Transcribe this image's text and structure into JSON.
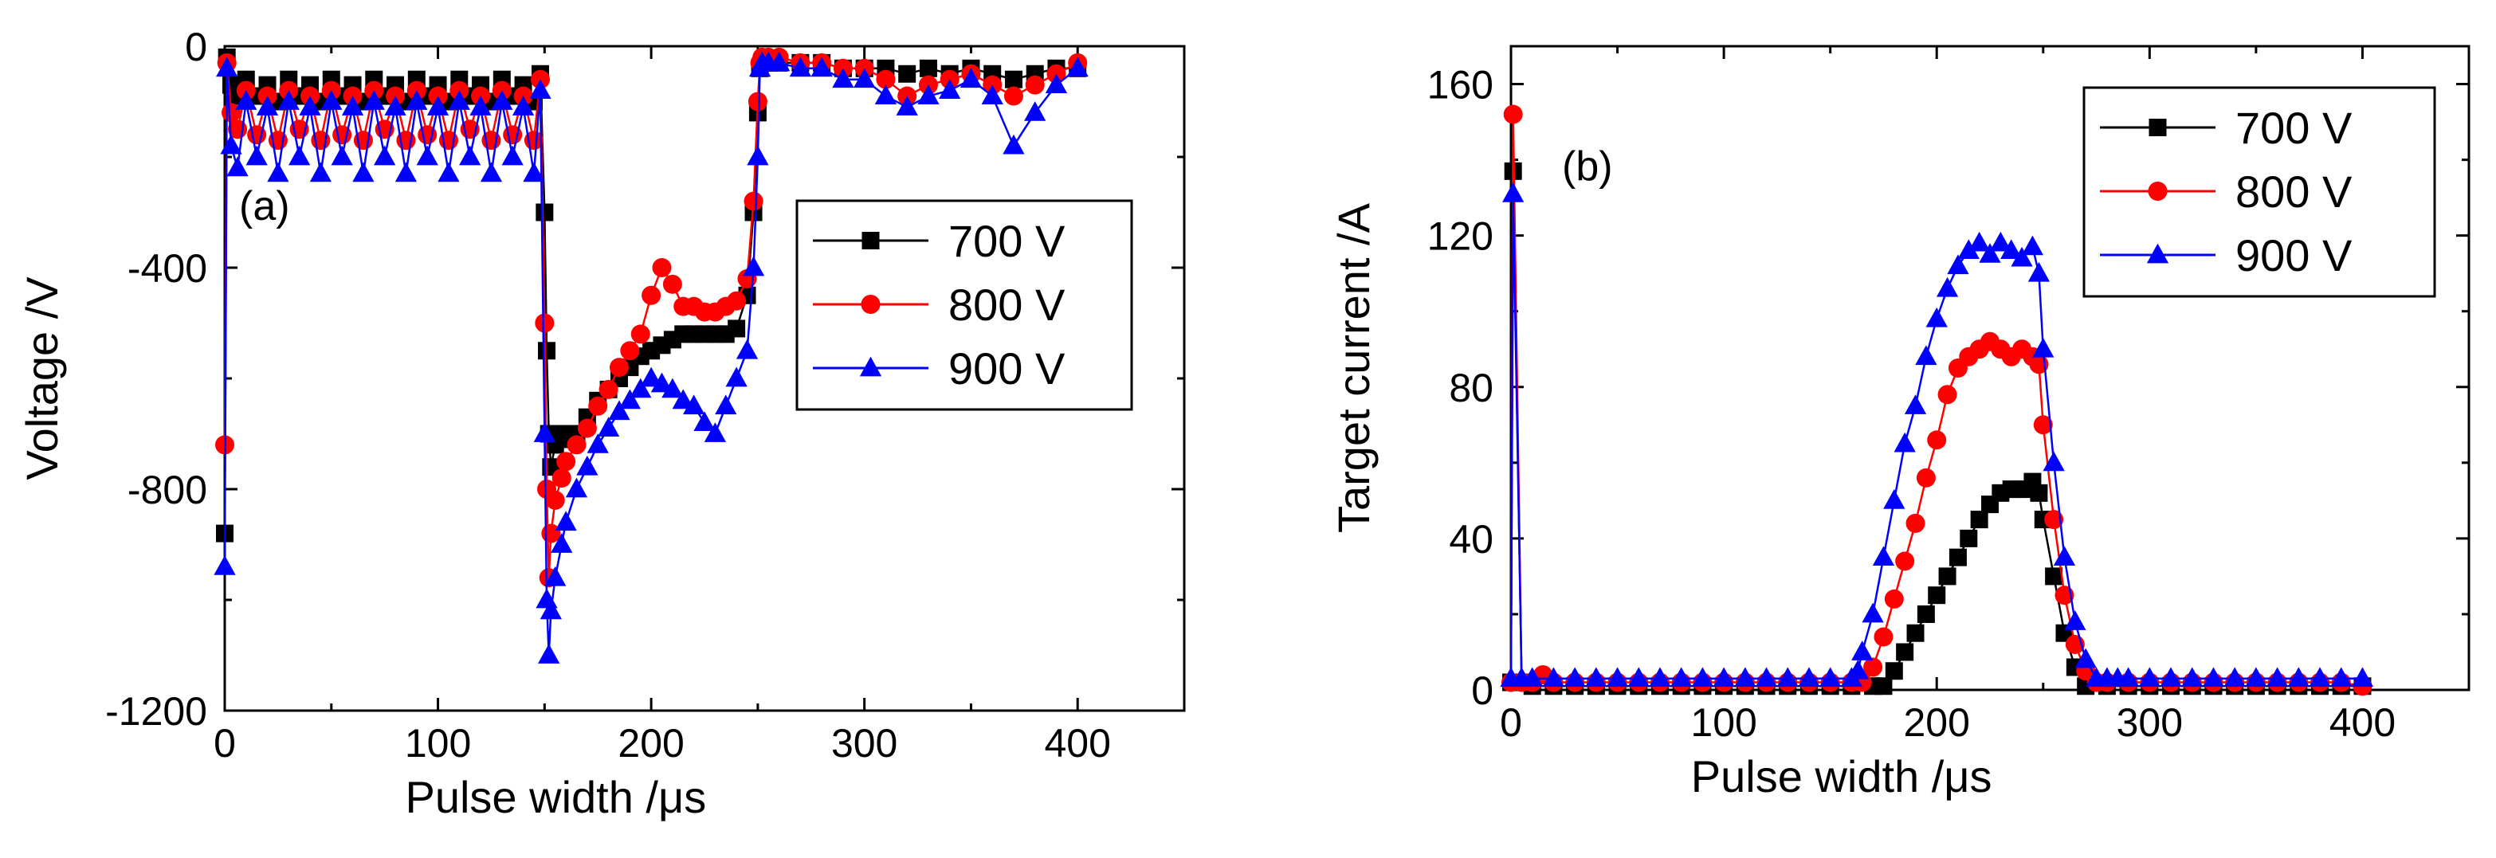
{
  "chart_data": [
    {
      "type": "scatter",
      "panel_label": "(a)",
      "xlabel": "Pulse width /μs",
      "ylabel": "Voltage /V",
      "xlim": [
        0,
        450
      ],
      "ylim": [
        -1200,
        0
      ],
      "xticks": [
        0,
        100,
        200,
        300,
        400
      ],
      "yticks": [
        0,
        -400,
        -800,
        -1200
      ],
      "legend_position": "right-middle",
      "series": [
        {
          "name": "700 V",
          "color": "#000000",
          "marker": "square",
          "x": [
            0,
            1,
            3,
            6,
            10,
            15,
            20,
            25,
            30,
            35,
            40,
            45,
            50,
            55,
            60,
            65,
            70,
            75,
            80,
            85,
            90,
            95,
            100,
            105,
            110,
            115,
            120,
            125,
            130,
            135,
            140,
            145,
            148,
            150,
            151,
            152,
            153,
            155,
            158,
            160,
            165,
            170,
            175,
            180,
            185,
            190,
            195,
            200,
            205,
            210,
            215,
            220,
            225,
            230,
            235,
            240,
            245,
            248,
            250,
            251,
            252,
            255,
            260,
            270,
            280,
            290,
            300,
            310,
            320,
            330,
            340,
            350,
            360,
            370,
            380,
            390,
            400
          ],
          "y": [
            -880,
            -20,
            -70,
            -90,
            -60,
            -90,
            -70,
            -100,
            -60,
            -90,
            -70,
            -100,
            -60,
            -90,
            -70,
            -100,
            -60,
            -90,
            -70,
            -100,
            -60,
            -90,
            -70,
            -100,
            -60,
            -90,
            -70,
            -100,
            -60,
            -90,
            -70,
            -100,
            -50,
            -300,
            -550,
            -700,
            -760,
            -720,
            -700,
            -710,
            -700,
            -670,
            -640,
            -620,
            -600,
            -580,
            -560,
            -550,
            -540,
            -530,
            -520,
            -520,
            -520,
            -520,
            -520,
            -510,
            -450,
            -300,
            -120,
            -40,
            -30,
            -30,
            -30,
            -30,
            -30,
            -40,
            -40,
            -40,
            -50,
            -40,
            -50,
            -40,
            -50,
            -60,
            -50,
            -40,
            -40
          ]
        },
        {
          "name": "800 V",
          "color": "#ff0000",
          "marker": "circle",
          "x": [
            0,
            1,
            3,
            6,
            10,
            15,
            20,
            25,
            30,
            35,
            40,
            45,
            50,
            55,
            60,
            65,
            70,
            75,
            80,
            85,
            90,
            95,
            100,
            105,
            110,
            115,
            120,
            125,
            130,
            135,
            140,
            145,
            148,
            150,
            151,
            152,
            153,
            155,
            158,
            160,
            165,
            170,
            175,
            180,
            185,
            190,
            195,
            200,
            205,
            210,
            215,
            220,
            225,
            230,
            235,
            240,
            245,
            248,
            250,
            251,
            252,
            255,
            260,
            270,
            280,
            290,
            300,
            310,
            320,
            330,
            340,
            350,
            360,
            370,
            380,
            390,
            400
          ],
          "y": [
            -720,
            -30,
            -120,
            -150,
            -80,
            -160,
            -90,
            -170,
            -80,
            -150,
            -90,
            -170,
            -80,
            -160,
            -90,
            -170,
            -80,
            -150,
            -90,
            -170,
            -80,
            -160,
            -90,
            -170,
            -80,
            -150,
            -90,
            -170,
            -80,
            -160,
            -90,
            -170,
            -60,
            -500,
            -800,
            -960,
            -880,
            -820,
            -780,
            -750,
            -720,
            -690,
            -650,
            -620,
            -580,
            -550,
            -520,
            -450,
            -400,
            -430,
            -470,
            -470,
            -480,
            -480,
            -470,
            -460,
            -420,
            -280,
            -100,
            -30,
            -20,
            -20,
            -20,
            -30,
            -30,
            -40,
            -40,
            -60,
            -90,
            -70,
            -60,
            -50,
            -70,
            -90,
            -70,
            -50,
            -30
          ]
        },
        {
          "name": "900 V",
          "color": "#0000ff",
          "marker": "triangle",
          "x": [
            0,
            1,
            3,
            6,
            10,
            15,
            20,
            25,
            30,
            35,
            40,
            45,
            50,
            55,
            60,
            65,
            70,
            75,
            80,
            85,
            90,
            95,
            100,
            105,
            110,
            115,
            120,
            125,
            130,
            135,
            140,
            145,
            148,
            150,
            151,
            152,
            153,
            155,
            158,
            160,
            165,
            170,
            175,
            180,
            185,
            190,
            195,
            200,
            205,
            210,
            215,
            220,
            225,
            230,
            235,
            240,
            245,
            248,
            250,
            251,
            252,
            255,
            260,
            270,
            280,
            290,
            300,
            310,
            320,
            330,
            340,
            350,
            360,
            370,
            380,
            390,
            400
          ],
          "y": [
            -940,
            -40,
            -180,
            -220,
            -100,
            -200,
            -110,
            -230,
            -100,
            -200,
            -110,
            -230,
            -100,
            -200,
            -110,
            -230,
            -100,
            -200,
            -110,
            -230,
            -100,
            -200,
            -110,
            -230,
            -100,
            -200,
            -110,
            -230,
            -100,
            -200,
            -110,
            -230,
            -80,
            -700,
            -1000,
            -1100,
            -1020,
            -960,
            -900,
            -860,
            -800,
            -760,
            -720,
            -690,
            -660,
            -640,
            -620,
            -600,
            -610,
            -620,
            -640,
            -650,
            -680,
            -700,
            -650,
            -600,
            -550,
            -400,
            -200,
            -40,
            -30,
            -30,
            -30,
            -40,
            -40,
            -60,
            -60,
            -90,
            -110,
            -90,
            -80,
            -60,
            -90,
            -180,
            -120,
            -70,
            -40
          ]
        }
      ]
    },
    {
      "type": "scatter",
      "panel_label": "(b)",
      "xlabel": "Pulse width /μs",
      "ylabel": "Target current /A",
      "xlim": [
        0,
        450
      ],
      "ylim": [
        0,
        170
      ],
      "xticks": [
        0,
        100,
        200,
        300,
        400
      ],
      "yticks": [
        0,
        40,
        80,
        120,
        160
      ],
      "legend_position": "top-right",
      "series": [
        {
          "name": "700 V",
          "color": "#000000",
          "marker": "square",
          "x": [
            0,
            1,
            5,
            10,
            20,
            30,
            40,
            50,
            60,
            70,
            80,
            90,
            100,
            110,
            120,
            130,
            140,
            150,
            160,
            170,
            175,
            180,
            185,
            190,
            195,
            200,
            205,
            210,
            215,
            220,
            225,
            230,
            235,
            240,
            245,
            248,
            250,
            255,
            260,
            265,
            270,
            280,
            290,
            300,
            310,
            320,
            330,
            340,
            350,
            360,
            370,
            380,
            390,
            400
          ],
          "y": [
            2,
            137,
            2,
            1,
            1,
            1,
            1,
            1,
            1,
            1,
            1,
            1,
            1,
            1,
            1,
            1,
            1,
            1,
            1,
            1,
            1,
            5,
            10,
            15,
            20,
            25,
            30,
            35,
            40,
            45,
            49,
            52,
            53,
            53,
            55,
            52,
            45,
            30,
            15,
            6,
            1,
            1,
            1,
            1,
            1,
            1,
            1,
            1,
            1,
            1,
            1,
            1,
            1,
            1
          ]
        },
        {
          "name": "800 V",
          "color": "#ff0000",
          "marker": "circle",
          "x": [
            0,
            1,
            5,
            10,
            15,
            20,
            30,
            40,
            50,
            60,
            70,
            80,
            90,
            100,
            110,
            120,
            130,
            140,
            150,
            160,
            165,
            170,
            175,
            180,
            185,
            190,
            195,
            200,
            205,
            210,
            215,
            220,
            225,
            230,
            235,
            240,
            245,
            248,
            250,
            255,
            260,
            265,
            270,
            275,
            280,
            290,
            300,
            310,
            320,
            330,
            340,
            350,
            360,
            370,
            380,
            390,
            400
          ],
          "y": [
            2,
            152,
            2,
            2,
            4,
            2,
            2,
            2,
            2,
            2,
            2,
            2,
            2,
            2,
            2,
            2,
            2,
            2,
            2,
            2,
            2,
            6,
            14,
            24,
            34,
            44,
            56,
            66,
            78,
            85,
            88,
            90,
            92,
            90,
            88,
            90,
            88,
            86,
            70,
            45,
            25,
            12,
            5,
            2,
            2,
            2,
            2,
            2,
            2,
            2,
            2,
            2,
            2,
            2,
            2,
            2,
            1
          ]
        },
        {
          "name": "900 V",
          "color": "#0000ff",
          "marker": "triangle",
          "x": [
            0,
            1,
            5,
            10,
            20,
            30,
            40,
            50,
            60,
            70,
            80,
            90,
            100,
            110,
            120,
            130,
            140,
            150,
            160,
            163,
            165,
            170,
            175,
            180,
            185,
            190,
            195,
            200,
            205,
            210,
            215,
            220,
            225,
            230,
            235,
            240,
            245,
            248,
            250,
            255,
            260,
            265,
            270,
            275,
            280,
            285,
            290,
            300,
            310,
            320,
            330,
            340,
            350,
            360,
            370,
            380,
            390,
            400
          ],
          "y": [
            3,
            131,
            3,
            3,
            3,
            3,
            3,
            3,
            3,
            3,
            3,
            3,
            3,
            3,
            3,
            3,
            3,
            3,
            3,
            5,
            10,
            20,
            35,
            50,
            65,
            75,
            88,
            98,
            106,
            112,
            116,
            118,
            115,
            118,
            116,
            114,
            117,
            110,
            90,
            60,
            35,
            18,
            8,
            3,
            3,
            3,
            3,
            3,
            3,
            3,
            3,
            3,
            3,
            3,
            3,
            3,
            3,
            3
          ]
        }
      ]
    }
  ]
}
